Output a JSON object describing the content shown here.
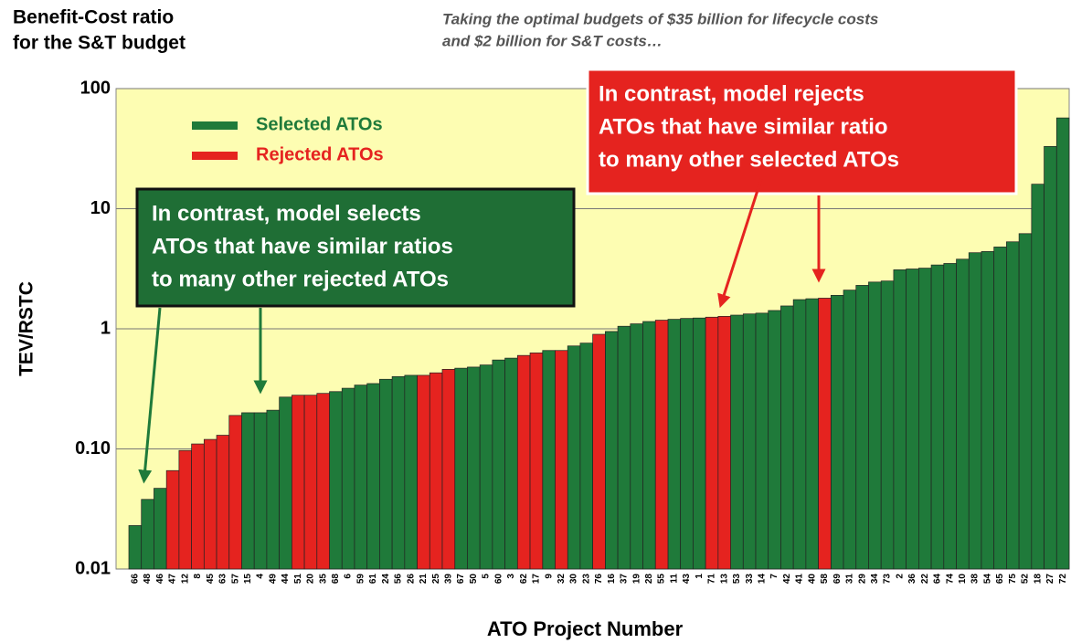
{
  "chart_data": {
    "type": "bar",
    "title": [
      "Benefit-Cost ratio",
      "for the S&T budget"
    ],
    "subtitle": [
      "Taking the optimal budgets of $35 billion for lifecycle costs",
      "and $2 billion for S&T costs…"
    ],
    "ylabel": "TEV/RSTC",
    "xlabel": "ATO Project Number",
    "log_scale": true,
    "grid": true,
    "background": "#fdfdb2",
    "ylim": [
      0.01,
      100
    ],
    "yticks": [
      0.01,
      {
        "value": 0.1,
        "label": "0.10"
      },
      1,
      10,
      100
    ],
    "categories": [
      "66",
      "48",
      "46",
      "47",
      "12",
      "8",
      "45",
      "63",
      "57",
      "15",
      "4",
      "49",
      "44",
      "51",
      "20",
      "35",
      "68",
      "6",
      "59",
      "61",
      "24",
      "56",
      "26",
      "21",
      "25",
      "39",
      "67",
      "50",
      "5",
      "60",
      "3",
      "62",
      "17",
      "9",
      "32",
      "30",
      "23",
      "76",
      "16",
      "37",
      "19",
      "28",
      "55",
      "11",
      "43",
      "1",
      "71",
      "13",
      "53",
      "33",
      "14",
      "7",
      "42",
      "41",
      "40",
      "58",
      "69",
      "31",
      "29",
      "34",
      "73",
      "2",
      "36",
      "22",
      "64",
      "74",
      "10",
      "38",
      "54",
      "65",
      "75",
      "52",
      "18",
      "27",
      "72"
    ],
    "series": [
      {
        "name": "Selected ATOs",
        "color": "#1f7a3a",
        "values": [
          0.023,
          0.038,
          0.047,
          null,
          null,
          null,
          null,
          null,
          null,
          0.2,
          0.2,
          0.21,
          0.27,
          null,
          null,
          null,
          0.3,
          0.32,
          0.34,
          0.35,
          0.38,
          0.4,
          0.41,
          null,
          null,
          null,
          0.47,
          0.48,
          0.5,
          0.55,
          0.57,
          null,
          null,
          0.66,
          null,
          0.72,
          0.76,
          null,
          0.95,
          1.05,
          1.1,
          1.15,
          null,
          1.2,
          1.22,
          1.23,
          null,
          null,
          1.3,
          1.33,
          1.35,
          1.42,
          1.55,
          1.75,
          1.78,
          null,
          1.9,
          2.1,
          2.3,
          2.45,
          2.5,
          3.1,
          3.15,
          3.2,
          3.4,
          3.5,
          3.8,
          4.3,
          4.4,
          4.8,
          5.3,
          6.2,
          16,
          33,
          57
        ]
      },
      {
        "name": "Rejected ATOs",
        "color": "#e5231f",
        "values": [
          null,
          null,
          null,
          0.066,
          0.097,
          0.11,
          0.12,
          0.13,
          0.19,
          null,
          null,
          null,
          null,
          0.28,
          0.28,
          0.29,
          null,
          null,
          null,
          null,
          null,
          null,
          null,
          0.41,
          0.43,
          0.46,
          null,
          null,
          null,
          null,
          null,
          0.6,
          0.63,
          null,
          0.66,
          null,
          null,
          0.9,
          null,
          null,
          null,
          null,
          1.18,
          null,
          null,
          null,
          1.25,
          1.27,
          null,
          null,
          null,
          null,
          null,
          null,
          null,
          1.8,
          null,
          null,
          null,
          null,
          null,
          null,
          null,
          null,
          null,
          null,
          null,
          null,
          null,
          null,
          null,
          null,
          null,
          null,
          null
        ]
      }
    ],
    "annotations": [
      [
        "In contrast, model selects",
        "ATOs that have similar ratios",
        "to many  other rejected ATOs"
      ],
      [
        "In contrast, model rejects",
        "ATOs that have similar ratio",
        "to many  other selected ATOs"
      ]
    ]
  }
}
